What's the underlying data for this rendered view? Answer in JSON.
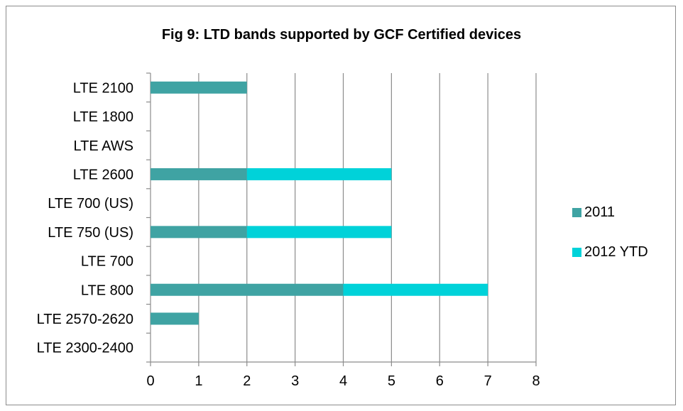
{
  "chart_data": {
    "type": "bar",
    "orientation": "horizontal",
    "stacked": true,
    "title": "Fig 9: LTD bands supported by GCF Certified devices",
    "xlabel": "",
    "ylabel": "",
    "xlim": [
      0,
      8
    ],
    "x_ticks": [
      "0",
      "1",
      "2",
      "3",
      "4",
      "5",
      "6",
      "7",
      "8"
    ],
    "grid": "vertical",
    "legend_position": "right",
    "categories": [
      "LTE 2100",
      "LTE 1800",
      "LTE AWS",
      "LTE 2600",
      "LTE 700 (US)",
      "LTE 750 (US)",
      "LTE 700",
      "LTE 800",
      "LTE 2570-2620",
      "LTE 2300-2400"
    ],
    "series": [
      {
        "name": "2011",
        "color": "#3fa3a3",
        "values": [
          2,
          0,
          0,
          2,
          0,
          2,
          0,
          4,
          1,
          0
        ]
      },
      {
        "name": "2012 YTD",
        "color": "#00d2d9",
        "values": [
          0,
          0,
          0,
          3,
          0,
          3,
          0,
          3,
          0,
          0
        ]
      }
    ]
  }
}
